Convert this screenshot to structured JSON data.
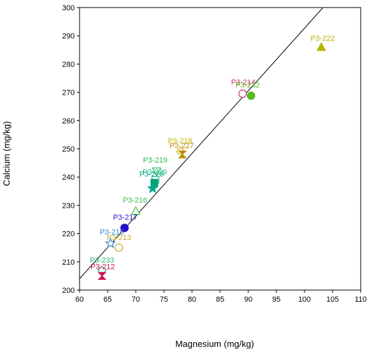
{
  "chart_data": {
    "type": "scatter",
    "title": "",
    "xlabel": "Magnesium (mg/kg)",
    "ylabel": "Calcium (mg/kg)",
    "xlim": [
      60,
      110
    ],
    "ylim": [
      200,
      300
    ],
    "xticks": [
      "60",
      "65",
      "70",
      "75",
      "80",
      "85",
      "90",
      "95",
      "100",
      "105",
      "110"
    ],
    "yticks": [
      "200",
      "210",
      "220",
      "230",
      "240",
      "250",
      "260",
      "270",
      "280",
      "290",
      "300"
    ],
    "grid": false,
    "legend": "none",
    "regression_line": {
      "x": [
        60,
        103.3
      ],
      "y": [
        204,
        300
      ]
    },
    "points": [
      {
        "label": "P3-222",
        "x": 103,
        "y": 286,
        "marker": "triangle-filled",
        "color": "#b5b200",
        "label_dx": 2,
        "label_dy": -9
      },
      {
        "label": "P3-214",
        "x": 89,
        "y": 269.5,
        "marker": "circle-open",
        "color": "#cc3377",
        "label_dx": 1,
        "label_dy": -13
      },
      {
        "label": "P3-232",
        "x": 90.5,
        "y": 268.8,
        "marker": "circle-filled",
        "color": "#55bb22",
        "label_dx": -5,
        "label_dy": -12
      },
      {
        "label": "P3-218",
        "x": 78,
        "y": 249,
        "marker": "diamond-open",
        "color": "#c9b400",
        "label_dx": -1,
        "label_dy": -12
      },
      {
        "label": "P3-227",
        "x": 78.3,
        "y": 248,
        "marker": "hourglass-filled",
        "color": "#b88a00",
        "label_dx": -1,
        "label_dy": -9
      },
      {
        "label": "P3-219",
        "x": 73.7,
        "y": 242,
        "marker": "triangle-down-open",
        "color": "#22bb55",
        "label_dx": -2,
        "label_dy": -13
      },
      {
        "label": "P3-229",
        "x": 73.5,
        "y": 239,
        "marker": "square-open",
        "color": "#22bb88",
        "label_dx": -1,
        "label_dy": -8
      },
      {
        "label": "P3-228",
        "x": 73.3,
        "y": 238,
        "marker": "square-filled",
        "color": "#00a377",
        "label_dx": -4,
        "label_dy": -9
      },
      {
        "label": "",
        "x": 73,
        "y": 236,
        "marker": "star-filled",
        "color": "#00aa88",
        "label_dx": 0,
        "label_dy": 0
      },
      {
        "label": "P3-216",
        "x": 70,
        "y": 228,
        "marker": "triangle-open",
        "color": "#44bb44",
        "label_dx": -1,
        "label_dy": -12
      },
      {
        "label": "P3-217",
        "x": 68,
        "y": 222,
        "marker": "circle-filled",
        "color": "#2211cc",
        "label_dx": 1,
        "label_dy": -12
      },
      {
        "label": "P3-215",
        "x": 65.5,
        "y": 216.5,
        "marker": "star-open",
        "color": "#3388cc",
        "label_dx": 2,
        "label_dy": -13
      },
      {
        "label": "P3-213",
        "x": 67,
        "y": 215,
        "marker": "circle-open",
        "color": "#ccaa22",
        "label_dx": 0,
        "label_dy": -11
      },
      {
        "label": "P3-233",
        "x": 64,
        "y": 207,
        "marker": "diamond-open",
        "color": "#22bb66",
        "label_dx": 0,
        "label_dy": -11
      },
      {
        "label": "P3-212",
        "x": 64,
        "y": 205,
        "marker": "hourglass-filled",
        "color": "#cc1155",
        "label_dx": 1,
        "label_dy": -10
      }
    ]
  }
}
